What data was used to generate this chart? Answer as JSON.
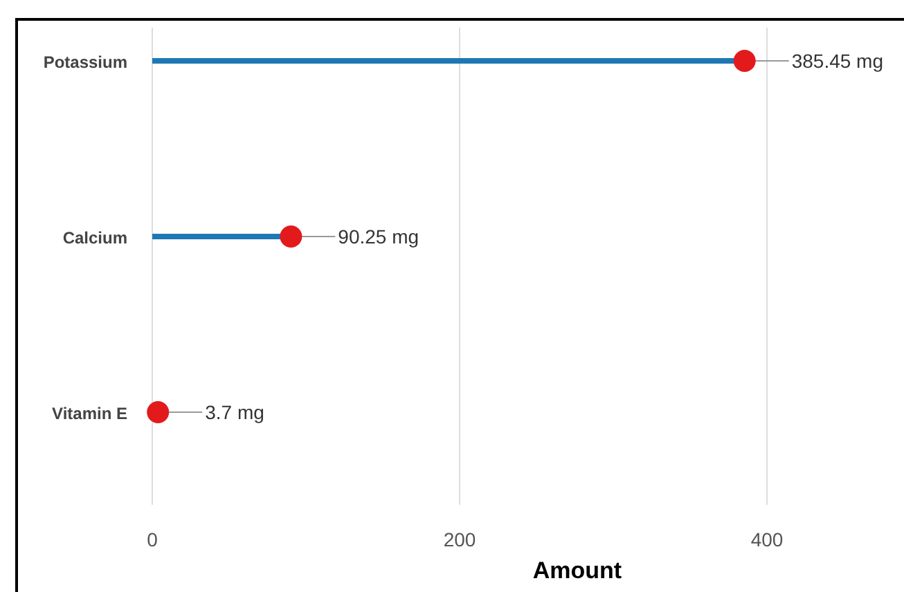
{
  "chart_data": {
    "type": "lollipop",
    "xlabel": "Amount",
    "orientation": "horizontal",
    "categories": [
      "Potassium",
      "Calcium",
      "Vitamin E"
    ],
    "series": [
      {
        "color": "#e31a1c",
        "values": [
          385.45,
          90.25,
          3.7
        ],
        "value_labels": [
          "385.45 mg",
          "90.25 mg",
          "3.7 mg"
        ]
      }
    ],
    "xlim": [
      0,
      400
    ],
    "xticks": [
      0,
      200,
      400
    ],
    "grid": "x",
    "marker": "circle"
  }
}
